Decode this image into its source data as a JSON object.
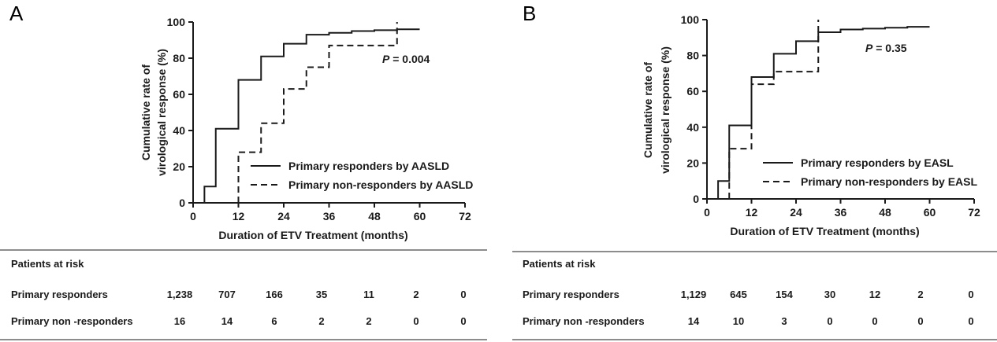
{
  "chart_data": [
    {
      "panel": "A",
      "type": "line",
      "ylabel_lines": [
        "Cumulative rate of",
        "virological response  (%)"
      ],
      "xlabel": "Duration of  ETV Treatment (months)",
      "xticks": [
        0,
        12,
        24,
        36,
        48,
        60,
        72
      ],
      "yticks": [
        0,
        20,
        40,
        60,
        80,
        100
      ],
      "xlim": [
        0,
        72
      ],
      "ylim": [
        0,
        100
      ],
      "annotation": {
        "p_label": "P",
        "p_value": " = 0.004"
      },
      "legend_position": "bottom-right",
      "series": [
        {
          "name": "Primary  responders by AASLD",
          "style": "solid",
          "x": [
            3,
            6,
            12,
            18,
            24,
            30,
            36,
            42,
            48,
            54,
            60
          ],
          "y": [
            9,
            41,
            68,
            81,
            88,
            93,
            94,
            95,
            95.5,
            96,
            96
          ]
        },
        {
          "name": "Primary  non-responders by AASLD",
          "style": "dashed",
          "x": [
            12,
            18,
            24,
            30,
            36,
            54
          ],
          "y": [
            28,
            44,
            63,
            75,
            87,
            100
          ]
        }
      ],
      "risk_table": {
        "header": "Patients at risk",
        "rows": [
          {
            "label": "Primary responders",
            "values": [
              "1,238",
              "707",
              "166",
              "35",
              "11",
              "2",
              "0"
            ]
          },
          {
            "label": "Primary non -responders",
            "values": [
              "16",
              "14",
              "6",
              "2",
              "2",
              "0",
              "0"
            ]
          }
        ]
      }
    },
    {
      "panel": "B",
      "type": "line",
      "ylabel_lines": [
        "Cumulative rate of",
        "virological response  (%)"
      ],
      "xlabel": "Duration of  ETV Treatment (months)",
      "xticks": [
        0,
        12,
        24,
        36,
        48,
        60,
        72
      ],
      "yticks": [
        0,
        20,
        40,
        60,
        80,
        100
      ],
      "xlim": [
        0,
        72
      ],
      "ylim": [
        0,
        100
      ],
      "annotation": {
        "p_label": "P",
        "p_value": " = 0.35"
      },
      "legend_position": "bottom-right",
      "series": [
        {
          "name": "Primary responders by EASL",
          "style": "solid",
          "x": [
            3,
            6,
            12,
            18,
            24,
            30,
            36,
            42,
            48,
            54,
            60
          ],
          "y": [
            10,
            41,
            68,
            81,
            88,
            93,
            94.5,
            95,
            95.5,
            96,
            96
          ]
        },
        {
          "name": "Primary non-responders by EASL",
          "style": "dashed",
          "x": [
            6,
            12,
            18,
            24,
            30
          ],
          "y": [
            28,
            64,
            71,
            71,
            100
          ]
        }
      ],
      "risk_table": {
        "header": "Patients at risk",
        "rows": [
          {
            "label": "Primary responders",
            "values": [
              "1,129",
              "645",
              "154",
              "30",
              "12",
              "2",
              "0"
            ]
          },
          {
            "label": "Primary non -responders",
            "values": [
              "14",
              "10",
              "3",
              "0",
              "0",
              "0",
              "0"
            ]
          }
        ]
      }
    }
  ]
}
